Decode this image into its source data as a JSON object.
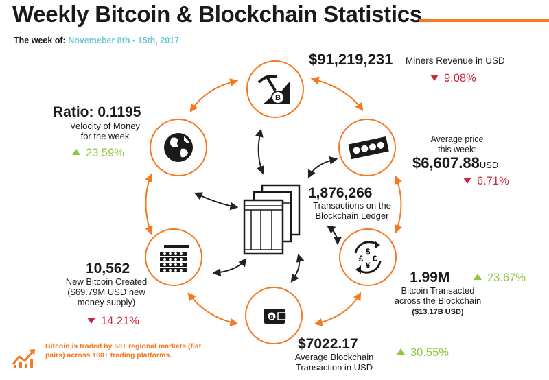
{
  "header": {
    "title": "Weekly Bitcoin & Blockchain Statistics",
    "week_label": "The week of:",
    "week_dates": "Novemeber 8th - 15th, 2017"
  },
  "miners": {
    "value": "$91,219,231",
    "label": "Miners Revenue in USD",
    "change": "9.08%",
    "direction": "down"
  },
  "price": {
    "label_line1": "Average price",
    "label_line2": "this week:",
    "value": "$6,607.88",
    "unit": "USD",
    "change": "6.71%",
    "direction": "down"
  },
  "transactions": {
    "value": "1,876,266",
    "label_line1": "Transactions on the",
    "label_line2": "Blockchain Ledger"
  },
  "transacted": {
    "value": "1.99M",
    "change": "23.67%",
    "direction": "up",
    "label_line1": "Bitcoin Transacted",
    "label_line2": "across the Blockchain",
    "sub": "($13.17B USD)"
  },
  "avg_transaction": {
    "value": "$7022.17",
    "label_line1": "Average Blockchain",
    "label_line2": "Transaction in USD",
    "change": "30.55%",
    "direction": "up"
  },
  "new_bitcoin": {
    "value": "10,562",
    "label_line1": "New Bitcoin Created",
    "label_line2": "($69.79M USD new",
    "label_line3": "money supply)",
    "change": "14.21%",
    "direction": "down"
  },
  "velocity": {
    "value": "Ratio: 0.1195",
    "label_line1": "Velocity of Money",
    "label_line2": "for the week",
    "change": "23.59%",
    "direction": "up"
  },
  "footnote": "Bitcoin is traded by 50+ regional markets (fiat pairs) across 160+ trading platforms.",
  "colors": {
    "accent": "#f47920",
    "up": "#8dc63f",
    "down": "#c8283a",
    "highlight": "#6ec6d9",
    "text": "#1a1a1a"
  },
  "icons": [
    "pickaxe-bitcoin-icon",
    "banknotes-icon",
    "currency-exchange-icon",
    "wallet-icon",
    "coin-stacks-icon",
    "globe-icon",
    "ledger-icon",
    "rising-chart-icon"
  ]
}
